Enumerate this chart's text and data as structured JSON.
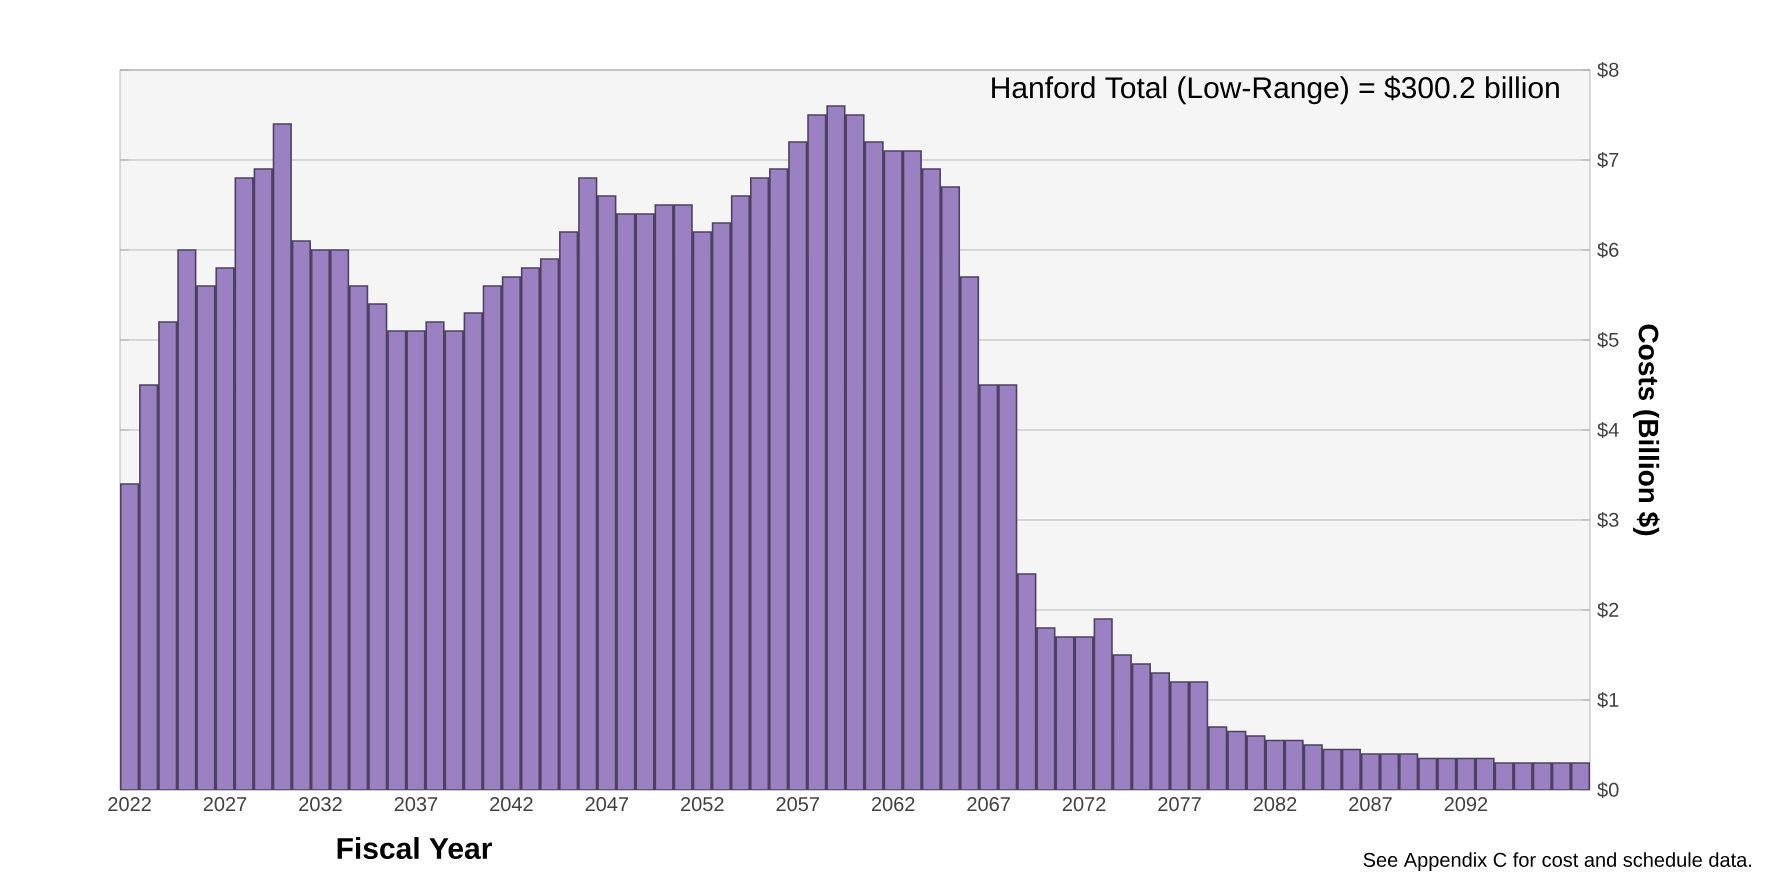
{
  "chart_data": {
    "type": "bar",
    "title": "Hanford Total (Low-Range)  =  $300.2 billion",
    "xlabel": "Fiscal Year",
    "ylabel": "Costs (Billion $)",
    "categories": [
      "2022",
      null,
      null,
      null,
      null,
      "2027",
      null,
      null,
      null,
      null,
      "2032",
      null,
      null,
      null,
      null,
      "2037",
      null,
      null,
      null,
      null,
      "2042",
      null,
      null,
      null,
      null,
      "2047",
      null,
      null,
      null,
      null,
      "2052",
      null,
      null,
      null,
      null,
      "2057",
      null,
      null,
      null,
      null,
      "2062",
      null,
      null,
      null,
      null,
      "2067",
      null,
      null,
      null,
      null,
      "2072",
      null,
      null,
      null,
      null,
      "2077",
      null,
      null,
      null,
      null,
      "2082",
      null,
      null,
      null,
      null,
      "2087",
      null,
      null,
      null,
      null,
      "2092",
      null,
      null,
      null,
      null,
      null,
      null
    ],
    "values": [
      3.4,
      4.5,
      5.2,
      6.0,
      5.6,
      5.8,
      6.8,
      6.9,
      7.4,
      6.1,
      6.0,
      6.0,
      5.6,
      5.4,
      5.1,
      5.1,
      5.2,
      5.1,
      5.3,
      5.6,
      5.7,
      5.8,
      5.9,
      6.2,
      6.8,
      6.6,
      6.4,
      6.4,
      6.5,
      6.5,
      6.2,
      6.3,
      6.6,
      6.8,
      6.9,
      7.2,
      7.5,
      7.6,
      7.5,
      7.2,
      7.1,
      7.1,
      6.9,
      6.7,
      5.7,
      4.5,
      4.5,
      2.4,
      1.8,
      1.7,
      1.7,
      1.9,
      1.5,
      1.4,
      1.3,
      1.2,
      1.2,
      0.7,
      0.65,
      0.6,
      0.55,
      0.55,
      0.5,
      0.45,
      0.45,
      0.4,
      0.4,
      0.4,
      0.35,
      0.35,
      0.35,
      0.35,
      0.3,
      0.3,
      0.3,
      0.3,
      0.3
    ],
    "color": "#9a82c2",
    "ylim": [
      0,
      8
    ],
    "yticks": [
      {
        "value": 0,
        "label": "$0"
      },
      {
        "value": 1,
        "label": "$1"
      },
      {
        "value": 2,
        "label": "$2"
      },
      {
        "value": 3,
        "label": "$3"
      },
      {
        "value": 4,
        "label": "$4"
      },
      {
        "value": 5,
        "label": "$5"
      },
      {
        "value": 6,
        "label": "$6"
      },
      {
        "value": 7,
        "label": "$7"
      },
      {
        "value": 8,
        "label": "$8"
      }
    ],
    "grid": "y",
    "annotations": [
      "See Appendix C for cost and schedule data."
    ]
  }
}
